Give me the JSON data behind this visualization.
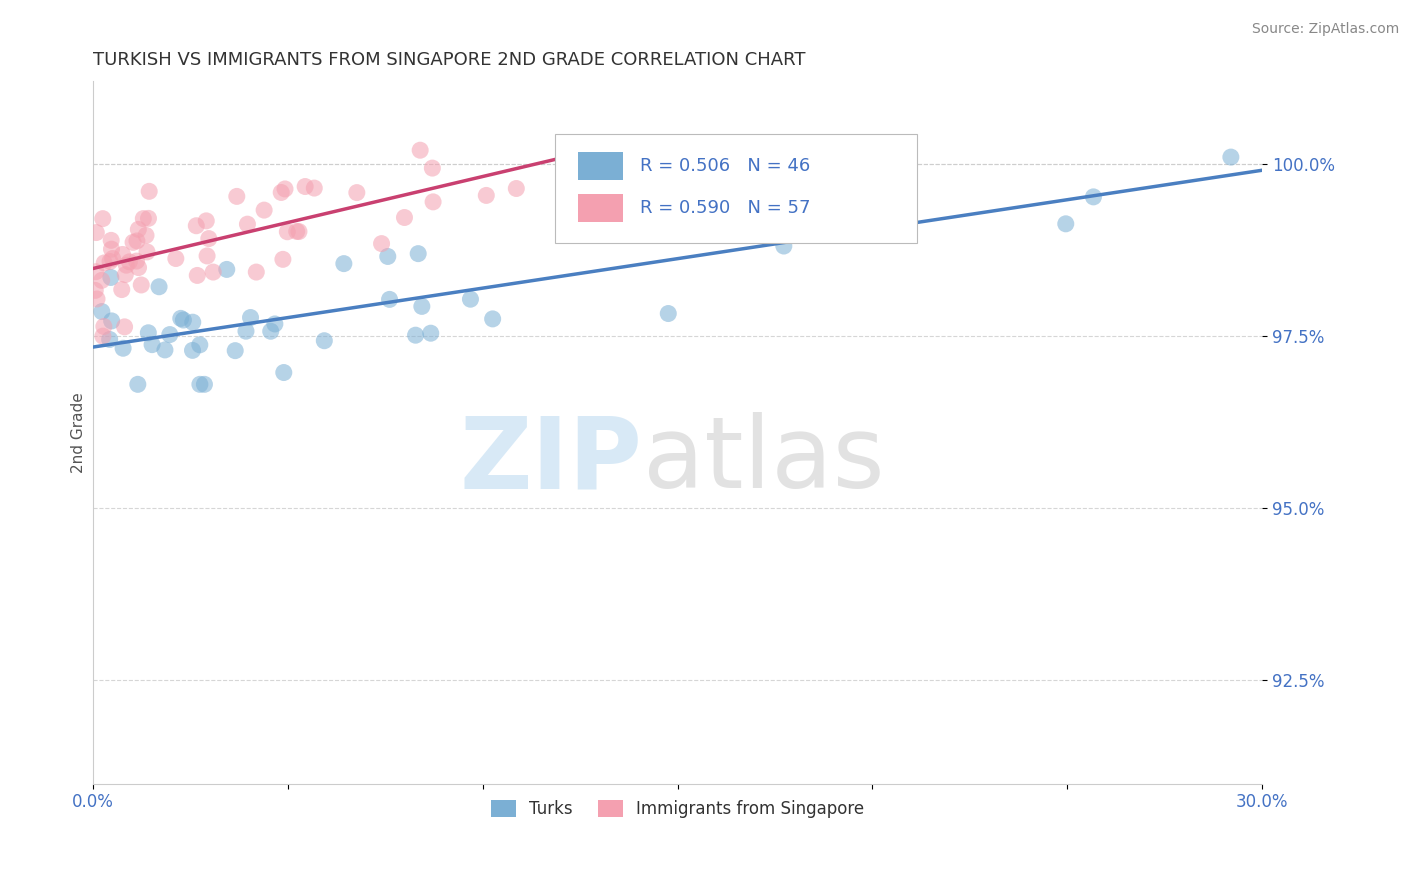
{
  "title": "TURKISH VS IMMIGRANTS FROM SINGAPORE 2ND GRADE CORRELATION CHART",
  "source": "Source: ZipAtlas.com",
  "ylabel": "2nd Grade",
  "xlim": [
    0.0,
    30.0
  ],
  "ylim": [
    91.0,
    101.2
  ],
  "yticks": [
    92.5,
    95.0,
    97.5,
    100.0
  ],
  "yticklabels": [
    "92.5%",
    "95.0%",
    "97.5%",
    "100.0%"
  ],
  "color_blue": "#7bafd4",
  "color_pink": "#f4a0b0",
  "color_line_blue": "#4a7fc1",
  "color_line_pink": "#c94070",
  "legend_r_blue": "R = 0.506",
  "legend_n_blue": "N = 46",
  "legend_r_pink": "R = 0.590",
  "legend_n_pink": "N = 57",
  "legend_label_blue": "Turks",
  "legend_label_pink": "Immigrants from Singapore",
  "bg_color": "#ffffff",
  "tick_color": "#4472c4",
  "grid_color": "#cccccc",
  "title_color": "#333333",
  "source_color": "#888888",
  "ylabel_color": "#555555"
}
